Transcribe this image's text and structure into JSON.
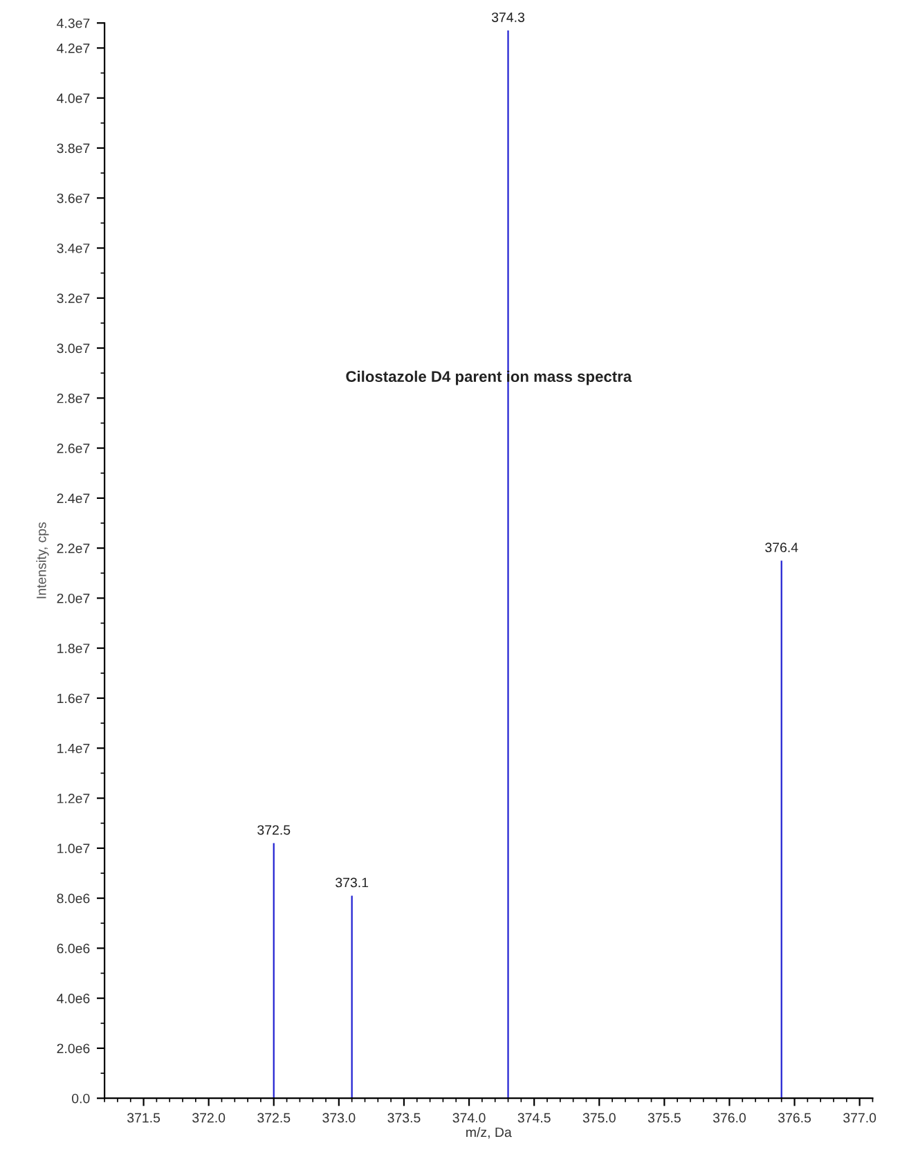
{
  "chart_data": {
    "type": "bar",
    "title": "Cilostazole D4 parent ion mass spectra",
    "xlabel": "m/z, Da",
    "ylabel": "Intensity, cps",
    "x": [
      372.5,
      373.1,
      374.3,
      376.4
    ],
    "series": [
      {
        "color": "#2323d2",
        "values": [
          10200000,
          8100000,
          42700000,
          21500000
        ]
      }
    ],
    "annotations": [
      {
        "text": "372.5",
        "x": 372.5,
        "y": 10200000
      },
      {
        "text": "373.1",
        "x": 373.1,
        "y": 8100000
      },
      {
        "text": "374.3",
        "x": 374.3,
        "y": 42700000
      },
      {
        "text": "376.4",
        "x": 376.4,
        "y": 21500000
      }
    ],
    "xlim": [
      371.2,
      377.1
    ],
    "xticks": [
      {
        "value": 371.5,
        "label": "371.5"
      },
      {
        "value": 372.0,
        "label": "372.0"
      },
      {
        "value": 372.5,
        "label": "372.5"
      },
      {
        "value": 373.0,
        "label": "373.0"
      },
      {
        "value": 373.5,
        "label": "373.5"
      },
      {
        "value": 374.0,
        "label": "374.0"
      },
      {
        "value": 374.5,
        "label": "374.5"
      },
      {
        "value": 375.0,
        "label": "375.0"
      },
      {
        "value": 375.5,
        "label": "375.5"
      },
      {
        "value": 376.0,
        "label": "376.0"
      },
      {
        "value": 376.5,
        "label": "376.5"
      },
      {
        "value": 377.0,
        "label": "377.0"
      }
    ],
    "ylim": [
      0,
      43000000
    ],
    "yticks": [
      {
        "value": 0,
        "label": "0.0"
      },
      {
        "value": 2000000,
        "label": "2.0e6"
      },
      {
        "value": 4000000,
        "label": "4.0e6"
      },
      {
        "value": 6000000,
        "label": "6.0e6"
      },
      {
        "value": 8000000,
        "label": "8.0e6"
      },
      {
        "value": 10000000,
        "label": "1.0e7"
      },
      {
        "value": 12000000,
        "label": "1.2e7"
      },
      {
        "value": 14000000,
        "label": "1.4e7"
      },
      {
        "value": 16000000,
        "label": "1.6e7"
      },
      {
        "value": 18000000,
        "label": "1.8e7"
      },
      {
        "value": 20000000,
        "label": "2.0e7"
      },
      {
        "value": 22000000,
        "label": "2.2e7"
      },
      {
        "value": 24000000,
        "label": "2.4e7"
      },
      {
        "value": 26000000,
        "label": "2.6e7"
      },
      {
        "value": 28000000,
        "label": "2.8e7"
      },
      {
        "value": 30000000,
        "label": "3.0e7"
      },
      {
        "value": 32000000,
        "label": "3.2e7"
      },
      {
        "value": 34000000,
        "label": "3.4e7"
      },
      {
        "value": 36000000,
        "label": "3.6e7"
      },
      {
        "value": 38000000,
        "label": "3.8e7"
      },
      {
        "value": 40000000,
        "label": "4.0e7"
      },
      {
        "value": 42000000,
        "label": "4.2e7"
      },
      {
        "value": 43000000,
        "label": "4.3e7"
      }
    ],
    "grid": false,
    "legend": false
  }
}
